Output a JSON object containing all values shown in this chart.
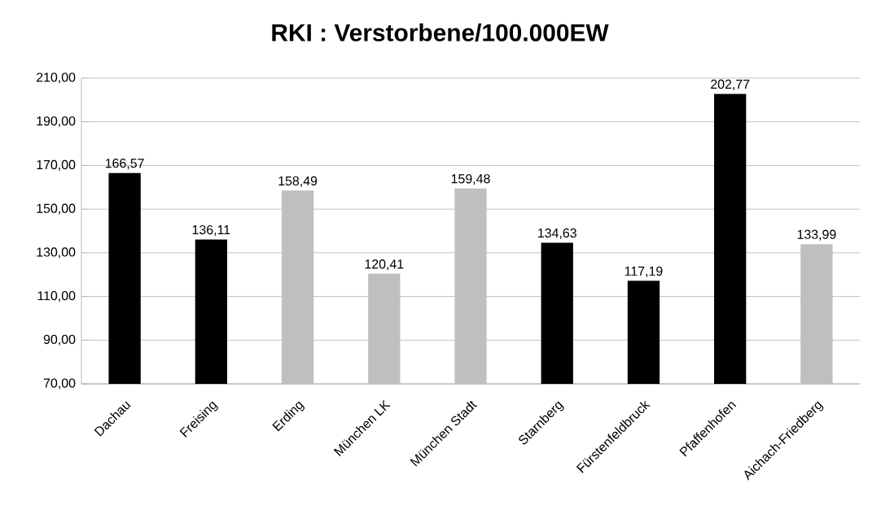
{
  "chart_data": {
    "type": "bar",
    "title": "RKI : Verstorbene/100.000EW",
    "categories": [
      "Dachau",
      "Freising",
      "Erding",
      "München LK",
      "München Stadt",
      "Starnberg",
      "Fürstenfeldbruck",
      "Pfaffenhofen",
      "Aichach-Friedberg"
    ],
    "values": [
      166.57,
      136.11,
      158.49,
      120.41,
      159.48,
      134.63,
      117.19,
      202.77,
      133.99
    ],
    "value_labels": [
      "166,57",
      "136,11",
      "158,49",
      "120,41",
      "159,48",
      "134,63",
      "117,19",
      "202,77",
      "133,99"
    ],
    "colors": [
      "#000000",
      "#000000",
      "#bfbfbf",
      "#bfbfbf",
      "#bfbfbf",
      "#000000",
      "#000000",
      "#000000",
      "#bfbfbf"
    ],
    "ylim": [
      70,
      210
    ],
    "yticks": [
      {
        "value": 70,
        "label": "70,00"
      },
      {
        "value": 90,
        "label": "90,00"
      },
      {
        "value": 110,
        "label": "110,00"
      },
      {
        "value": 130,
        "label": "130,00"
      },
      {
        "value": 150,
        "label": "150,00"
      },
      {
        "value": 170,
        "label": "170,00"
      },
      {
        "value": 190,
        "label": "190,00"
      },
      {
        "value": 210,
        "label": "210,00"
      }
    ],
    "grid": "y"
  }
}
